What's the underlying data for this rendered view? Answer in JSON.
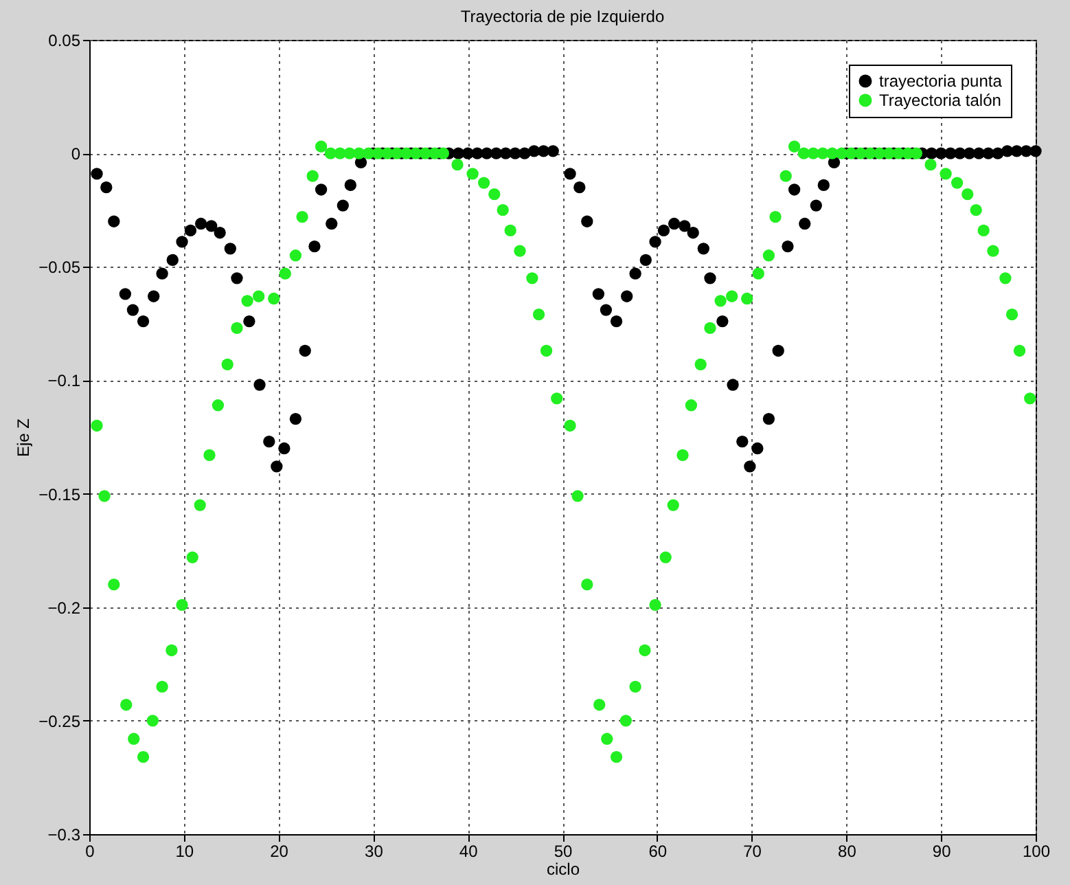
{
  "chart_data": {
    "type": "scatter",
    "title": "Trayectoria de pie Izquierdo",
    "xlabel": "ciclo",
    "ylabel": "Eje Z",
    "xlim": [
      0,
      100
    ],
    "xticks": [
      0,
      10,
      20,
      30,
      40,
      50,
      60,
      70,
      80,
      90,
      100
    ],
    "ylim": [
      -0.3,
      0.05
    ],
    "yticks": [
      -0.3,
      -0.25,
      -0.2,
      -0.15,
      -0.1,
      -0.05,
      0,
      0.05
    ],
    "grid": true,
    "legend": "top right",
    "marker": "circle",
    "series": [
      {
        "name": "trayectoria punta",
        "color": "#000000",
        "x": [
          0.8,
          1.8,
          2.6,
          3.8,
          4.6,
          5.7,
          6.8,
          7.7,
          8.8,
          9.8,
          10.7,
          11.8,
          12.9,
          13.8,
          14.9,
          15.6,
          16.9,
          18,
          19,
          19.8,
          20.6,
          21.8,
          22.8,
          23.8,
          24.5,
          25.6,
          26.8,
          27.6,
          28.7,
          30,
          31,
          32,
          33,
          34,
          35,
          36,
          37,
          38,
          39,
          40,
          41,
          42,
          43,
          44,
          45,
          46,
          47,
          48,
          49,
          50.8,
          51.8,
          52.6,
          53.8,
          54.6,
          55.7,
          56.8,
          57.7,
          58.8,
          59.8,
          60.7,
          61.8,
          62.9,
          63.8,
          64.9,
          65.6,
          66.9,
          68,
          69,
          69.8,
          70.6,
          71.8,
          72.8,
          73.8,
          74.5,
          75.6,
          76.8,
          77.6,
          78.7,
          80,
          81,
          82,
          83,
          84,
          85,
          86,
          87,
          88,
          89,
          90,
          91,
          92,
          93,
          94,
          95,
          96,
          97,
          98,
          99,
          100
        ],
        "values": [
          -0.009,
          -0.015,
          -0.03,
          -0.062,
          -0.069,
          -0.074,
          -0.063,
          -0.053,
          -0.047,
          -0.039,
          -0.034,
          -0.031,
          -0.032,
          -0.035,
          -0.042,
          -0.055,
          -0.074,
          -0.102,
          -0.127,
          -0.138,
          -0.13,
          -0.117,
          -0.087,
          -0.041,
          -0.016,
          -0.031,
          -0.023,
          -0.014,
          -0.004,
          0,
          0,
          0,
          0,
          0,
          0,
          0,
          0,
          0,
          0,
          0,
          0,
          0,
          0,
          0,
          0,
          0,
          0.001,
          0.001,
          0.001,
          -0.009,
          -0.015,
          -0.03,
          -0.062,
          -0.069,
          -0.074,
          -0.063,
          -0.053,
          -0.047,
          -0.039,
          -0.034,
          -0.031,
          -0.032,
          -0.035,
          -0.042,
          -0.055,
          -0.074,
          -0.102,
          -0.127,
          -0.138,
          -0.13,
          -0.117,
          -0.087,
          -0.041,
          -0.016,
          -0.031,
          -0.023,
          -0.014,
          -0.004,
          0,
          0,
          0,
          0,
          0,
          0,
          0,
          0,
          0,
          0,
          0,
          0,
          0,
          0,
          0,
          0,
          0,
          0.001,
          0.001,
          0.001,
          0.001
        ]
      },
      {
        "name": "Trayectoria talón",
        "color": "#22ee22",
        "x": [
          0.8,
          1.6,
          2.6,
          3.9,
          4.7,
          5.7,
          6.7,
          7.7,
          8.7,
          9.8,
          10.9,
          11.7,
          12.7,
          13.6,
          14.6,
          15.6,
          16.7,
          17.9,
          19.5,
          20.7,
          21.8,
          22.5,
          23.6,
          24.5,
          25.5,
          26.5,
          27.5,
          28.5,
          29.5,
          30.5,
          31.5,
          32.5,
          33.5,
          34.5,
          35.5,
          36.5,
          37.4,
          38.9,
          40.5,
          41.7,
          42.8,
          43.7,
          44.5,
          45.5,
          46.8,
          47.5,
          48.3,
          49.4,
          50.8,
          51.6,
          52.6,
          53.9,
          54.7,
          55.7,
          56.7,
          57.7,
          58.7,
          59.8,
          60.9,
          61.7,
          62.7,
          63.6,
          64.6,
          65.6,
          66.7,
          67.9,
          69.5,
          70.7,
          71.8,
          72.5,
          73.6,
          74.5,
          75.5,
          76.5,
          77.5,
          78.5,
          79.5,
          80.5,
          81.5,
          82.5,
          83.5,
          84.5,
          85.5,
          86.5,
          87.4,
          88.9,
          90.5,
          91.7,
          92.8,
          93.7,
          94.5,
          95.5,
          96.8,
          97.5,
          98.3,
          99.4
        ],
        "values": [
          -0.12,
          -0.151,
          -0.19,
          -0.243,
          -0.258,
          -0.266,
          -0.25,
          -0.235,
          -0.219,
          -0.199,
          -0.178,
          -0.155,
          -0.133,
          -0.111,
          -0.093,
          -0.077,
          -0.065,
          -0.063,
          -0.064,
          -0.053,
          -0.045,
          -0.028,
          -0.01,
          0.003,
          0,
          0,
          0,
          0,
          0,
          0,
          0,
          0,
          0,
          0,
          0,
          0,
          0,
          -0.005,
          -0.009,
          -0.013,
          -0.018,
          -0.025,
          -0.034,
          -0.043,
          -0.055,
          -0.071,
          -0.087,
          -0.108,
          -0.12,
          -0.151,
          -0.19,
          -0.243,
          -0.258,
          -0.266,
          -0.25,
          -0.235,
          -0.219,
          -0.199,
          -0.178,
          -0.155,
          -0.133,
          -0.111,
          -0.093,
          -0.077,
          -0.065,
          -0.063,
          -0.064,
          -0.053,
          -0.045,
          -0.028,
          -0.01,
          0.003,
          0,
          0,
          0,
          0,
          0,
          0,
          0,
          0,
          0,
          0,
          0,
          0,
          0,
          -0.005,
          -0.009,
          -0.013,
          -0.018,
          -0.025,
          -0.034,
          -0.043,
          -0.055,
          -0.071,
          -0.087,
          -0.108
        ]
      }
    ]
  }
}
